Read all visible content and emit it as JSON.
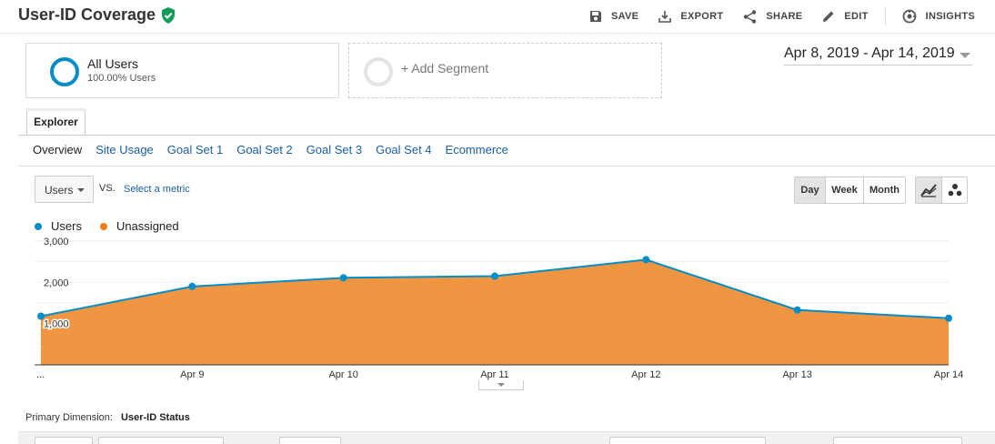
{
  "header": {
    "title": "User-ID Coverage",
    "actions": [
      {
        "label": "SAVE",
        "icon": "save-icon"
      },
      {
        "label": "EXPORT",
        "icon": "export-icon"
      },
      {
        "label": "SHARE",
        "icon": "share-icon"
      },
      {
        "label": "EDIT",
        "icon": "edit-icon"
      },
      {
        "label": "INSIGHTS",
        "icon": "insights-icon"
      }
    ]
  },
  "segments": {
    "active": {
      "name": "All Users",
      "percent": "100.00% Users"
    },
    "add_label": "+ Add Segment"
  },
  "date_range": "Apr 8, 2019 - Apr 14, 2019",
  "tabs": {
    "explorer": "Explorer",
    "subtabs": [
      "Overview",
      "Site Usage",
      "Goal Set 1",
      "Goal Set 2",
      "Goal Set 3",
      "Goal Set 4",
      "Ecommerce"
    ]
  },
  "controls": {
    "metric": "Users",
    "vs": "VS.",
    "select_metric": "Select a metric",
    "periods": [
      "Day",
      "Week",
      "Month"
    ],
    "active_period": "Day"
  },
  "legend": [
    {
      "name": "Users",
      "color": "#058dc7"
    },
    {
      "name": "Unassigned",
      "color": "#ed7e17"
    }
  ],
  "chart_data": {
    "type": "area",
    "x": [
      "...",
      "Apr 9",
      "Apr 10",
      "Apr 11",
      "Apr 12",
      "Apr 13",
      "Apr 14"
    ],
    "series": [
      {
        "name": "Users",
        "values": [
          1180,
          1900,
          2110,
          2150,
          2550,
          1330,
          1130
        ],
        "color": "#058dc7"
      },
      {
        "name": "Unassigned",
        "values": [
          1180,
          1900,
          2110,
          2150,
          2550,
          1330,
          1130
        ],
        "color": "#ed7e17"
      }
    ],
    "yticks": [
      "3,000",
      "2,000",
      "1,000"
    ],
    "ytick_values": [
      3000,
      2000,
      1000
    ],
    "ylim": [
      0,
      3000
    ]
  },
  "primary_dimension": {
    "label": "Primary Dimension:",
    "value": "User-ID Status"
  }
}
